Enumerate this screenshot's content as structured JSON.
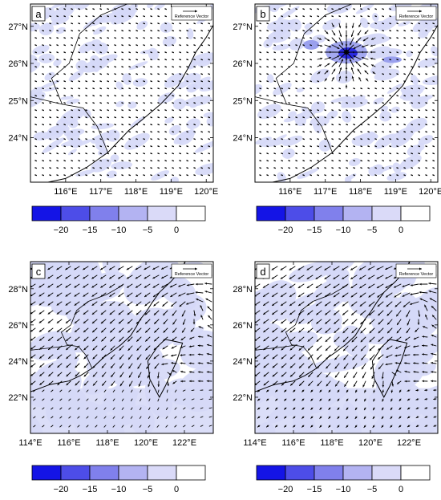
{
  "panels": [
    {
      "letter": "a",
      "reference_label": "Reference Vector",
      "lat_labels": [
        "27°N",
        "26°N",
        "25°N",
        "24°N"
      ],
      "lon_labels": [
        "116°E",
        "117°E",
        "118°E",
        "119°E",
        "120°E"
      ],
      "vector_style": "tiny",
      "extent": {
        "lon": [
          115,
          120.2
        ],
        "lat": [
          22.8,
          27.6
        ]
      }
    },
    {
      "letter": "b",
      "reference_label": "Reference Vector",
      "lat_labels": [
        "27°N",
        "26°N",
        "25°N",
        "24°N"
      ],
      "lon_labels": [
        "116°E",
        "117°E",
        "118°E",
        "119°E",
        "120°E"
      ],
      "vector_style": "convergent",
      "extent": {
        "lon": [
          115,
          120.2
        ],
        "lat": [
          22.8,
          27.6
        ]
      }
    },
    {
      "letter": "c",
      "reference_label": "Reference Vector",
      "lat_labels": [
        "28°N",
        "26°N",
        "24°N",
        "22°N"
      ],
      "lon_labels": [
        "114°E",
        "116°E",
        "118°E",
        "120°E",
        "122°E"
      ],
      "vector_style": "cyclonic",
      "extent": {
        "lon": [
          114,
          123.5
        ],
        "lat": [
          20,
          29.5
        ]
      }
    },
    {
      "letter": "d",
      "reference_label": "Reference Vector",
      "lat_labels": [
        "28°N",
        "26°N",
        "24°N",
        "22°N"
      ],
      "lon_labels": [
        "114°E",
        "116°E",
        "118°E",
        "120°E",
        "122°E"
      ],
      "vector_style": "cyclonic",
      "extent": {
        "lon": [
          114,
          123.5
        ],
        "lat": [
          20,
          29.5
        ]
      }
    }
  ],
  "colorbar": {
    "labels": [
      "-20",
      "-15",
      "-10",
      "-5",
      "0"
    ],
    "colors": [
      "#1414e6",
      "#4d4de8",
      "#8080ec",
      "#b3b3f2",
      "#dadaf8",
      "#ffffff"
    ]
  },
  "colors": {
    "shade_light": "#d5d8f7",
    "shade_mid": "#9aa0ee",
    "shade_strong": "#2a2ae0",
    "coast": "#000000"
  }
}
